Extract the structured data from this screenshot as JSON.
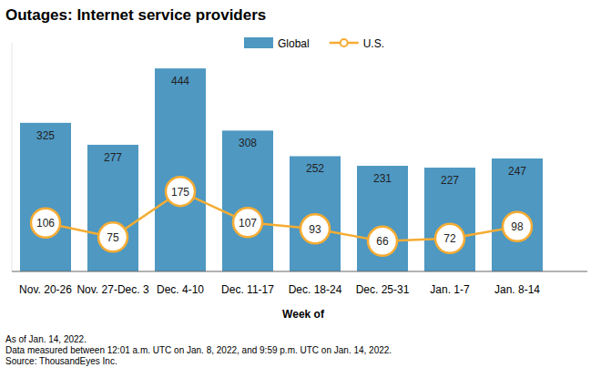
{
  "chart_data": {
    "type": "bar",
    "title": "Outages: Internet service providers",
    "categories": [
      "Nov. 20-26",
      "Nov. 27-Dec. 3",
      "Dec. 4-10",
      "Dec. 11-17",
      "Dec. 18-24",
      "Dec. 25-31",
      "Jan. 1-7",
      "Jan. 8-14"
    ],
    "series": [
      {
        "name": "Global",
        "type": "bar",
        "color": "#4e98c2",
        "values": [
          325,
          277,
          444,
          308,
          252,
          231,
          227,
          247
        ]
      },
      {
        "name": "U.S.",
        "type": "line",
        "color": "#f5ac33",
        "marker": "circle",
        "values": [
          106,
          75,
          175,
          107,
          93,
          66,
          72,
          98
        ]
      }
    ],
    "x_label": "Week of",
    "notes": [
      "As of Jan. 14, 2022.",
      "Data measured between 12:01 a.m. UTC on Jan. 8, 2022, and 9:59 p.m. UTC on Jan. 14, 2022.",
      "Source: ThousandEyes Inc."
    ],
    "ylim": [
      0,
      500
    ],
    "grid": false,
    "legend": "top",
    "data_labels": true,
    "tick_labels": "x"
  }
}
